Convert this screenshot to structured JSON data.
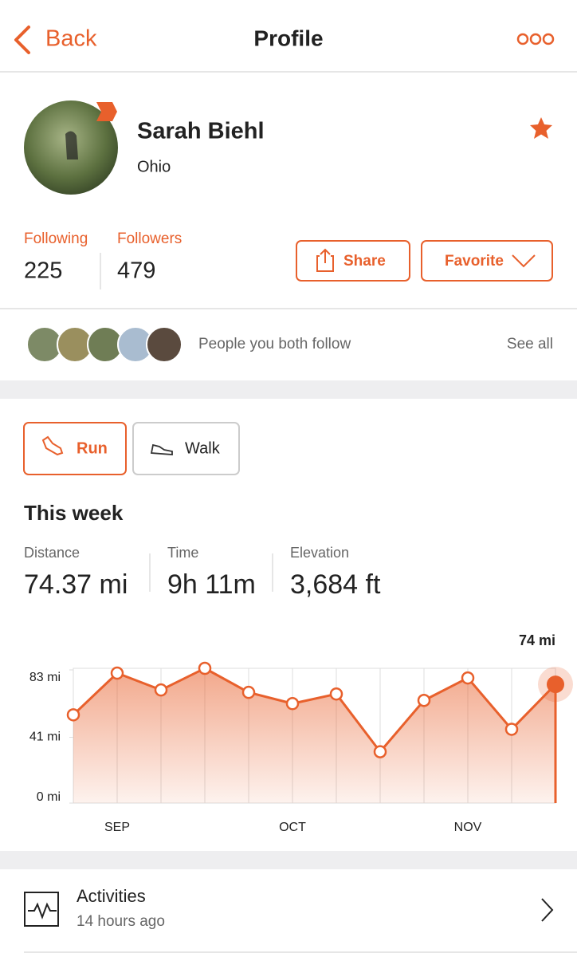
{
  "header": {
    "back": "Back",
    "title": "Profile"
  },
  "profile": {
    "name": "Sarah Biehl",
    "location": "Ohio",
    "following_label": "Following",
    "following": 225,
    "followers_label": "Followers",
    "followers": 479,
    "share": "Share",
    "favorite": "Favorite"
  },
  "mutual": {
    "text": "People you both follow",
    "see_all": "See all"
  },
  "sport_tabs": [
    "Run",
    "Walk"
  ],
  "week": {
    "title": "This week",
    "stats": [
      {
        "label": "Distance",
        "value": "74.37 mi"
      },
      {
        "label": "Time",
        "value": "9h 11m"
      },
      {
        "label": "Elevation",
        "value": "3,684 ft"
      }
    ]
  },
  "chart_data": {
    "type": "line",
    "categories": [
      null,
      "SEP",
      null,
      null,
      null,
      "OCT",
      null,
      null,
      null,
      "NOV",
      null,
      null
    ],
    "values": [
      55,
      81,
      70.5,
      84,
      69,
      62,
      68,
      32,
      64,
      78,
      46,
      74
    ],
    "value_labels": [
      null,
      null,
      null,
      null,
      null,
      null,
      null,
      null,
      null,
      null,
      null,
      "74 mi"
    ],
    "color": "#e8602c",
    "ylim": [
      0,
      84
    ],
    "yticks": [
      {
        "value": 0,
        "label": "0 mi"
      },
      {
        "value": 41,
        "label": "41 mi"
      },
      {
        "value": 83,
        "label": "83 mi"
      }
    ],
    "area_fill": true
  },
  "activities": {
    "title": "Activities",
    "subtitle": "14 hours ago"
  }
}
